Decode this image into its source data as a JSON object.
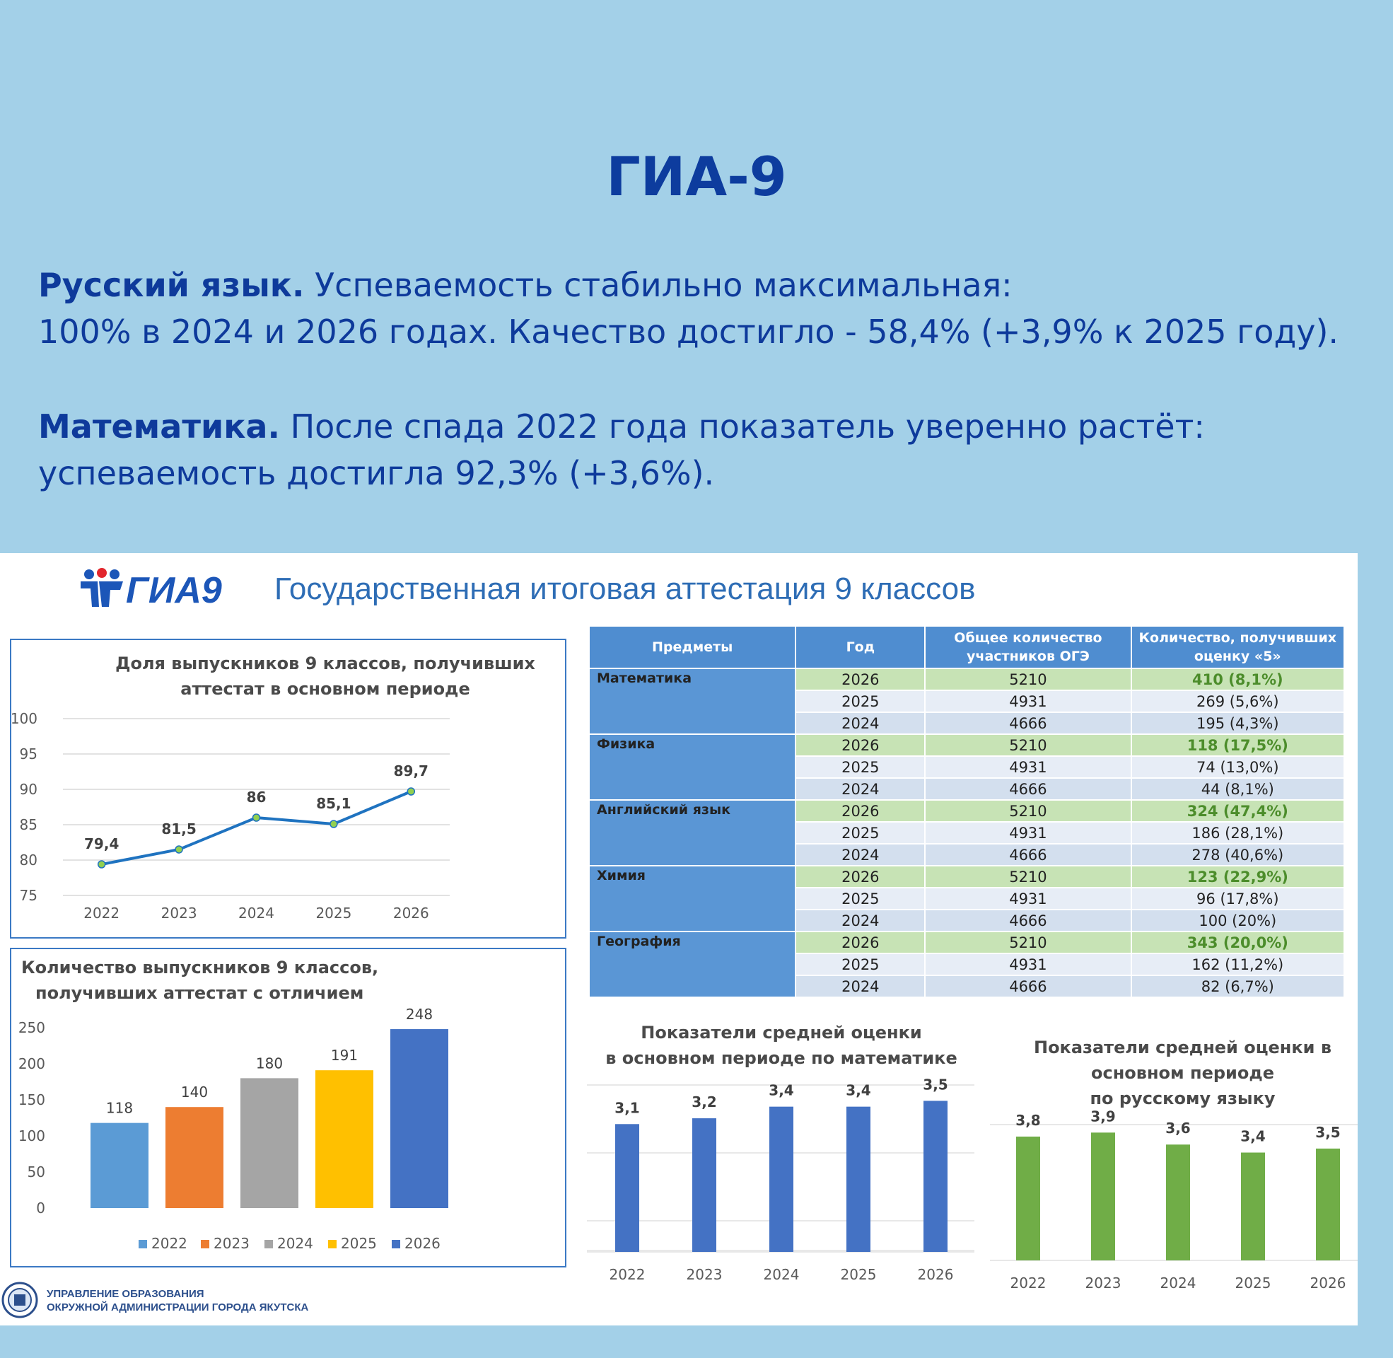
{
  "heading": "ГИА-9",
  "paragraphs": {
    "p1_bold": "Русский язык.",
    "p1_line1": " Успеваемость стабильно максимальная:",
    "p1_line2": "100% в 2024 и 2026 годах. Качество достигло - 58,4% (+3,9% к 2025 году).",
    "p2_bold": "Математика.",
    "p2_line1": " После спада 2022 года показатель уверенно растёт:",
    "p2_line2": "успеваемость достигла 92,3% (+3,6%)."
  },
  "slide": {
    "logo_text": "ГИА9",
    "title": "Государственная итоговая аттестация 9 классов",
    "footer_line1": "УПРАВЛЕНИЕ ОБРАЗОВАНИЯ",
    "footer_line2": "ОКРУЖНОЙ АДМИНИСТРАЦИИ ГОРОДА ЯКУТСКА"
  },
  "colors": {
    "background": "#a3d0e8",
    "heading": "#0d3c9e",
    "line": "#1f73c0",
    "bars_math": "#4472c4",
    "bars_russian": "#70ad47",
    "highlight_row": "#c7e3b5"
  },
  "table": {
    "headers": [
      "Предметы",
      "Год",
      "Общее количество участников ОГЭ",
      "Количество, получивших оценку «5»"
    ],
    "subjects": [
      {
        "name": "Математика",
        "rows": [
          [
            "2026",
            "5210",
            "410 (8,1%)"
          ],
          [
            "2025",
            "4931",
            "269 (5,6%)"
          ],
          [
            "2024",
            "4666",
            "195 (4,3%)"
          ]
        ]
      },
      {
        "name": "Физика",
        "rows": [
          [
            "2026",
            "5210",
            "118 (17,5%)"
          ],
          [
            "2025",
            "4931",
            "74 (13,0%)"
          ],
          [
            "2024",
            "4666",
            "44 (8,1%)"
          ]
        ]
      },
      {
        "name": "Английский язык",
        "rows": [
          [
            "2026",
            "5210",
            "324 (47,4%)"
          ],
          [
            "2025",
            "4931",
            "186 (28,1%)"
          ],
          [
            "2024",
            "4666",
            "278 (40,6%)"
          ]
        ]
      },
      {
        "name": "Химия",
        "rows": [
          [
            "2026",
            "5210",
            "123 (22,9%)"
          ],
          [
            "2025",
            "4931",
            "96 (17,8%)"
          ],
          [
            "2024",
            "4666",
            "100 (20%)"
          ]
        ]
      },
      {
        "name": "География",
        "rows": [
          [
            "2026",
            "5210",
            "343 (20,0%)"
          ],
          [
            "2025",
            "4931",
            "162 (11,2%)"
          ],
          [
            "2024",
            "4666",
            "82 (6,7%)"
          ]
        ]
      }
    ]
  },
  "chart_data": [
    {
      "type": "line",
      "title": "Доля выпускников 9 классов, получивших аттестат в основном периоде",
      "title_lines": [
        "Доля выпускников 9 классов, получивших",
        "аттестат в основном периоде"
      ],
      "x": [
        "2022",
        "2023",
        "2024",
        "2025",
        "2026"
      ],
      "values": [
        79.4,
        81.5,
        86,
        85.1,
        89.7
      ],
      "labels": [
        "79,4",
        "81,5",
        "86",
        "85,1",
        "89,7"
      ],
      "yticks": [
        75,
        80,
        85,
        90,
        95,
        100
      ],
      "ylim": [
        75,
        100
      ],
      "grid": true
    },
    {
      "type": "bar",
      "title": "Количество выпускников 9 классов, получивших аттестат с отличием",
      "title_lines": [
        "Количество выпускников 9 классов,",
        "получивших аттестат с отличием"
      ],
      "categories": [
        "2022",
        "2023",
        "2024",
        "2025",
        "2026"
      ],
      "values": [
        118,
        140,
        180,
        191,
        248
      ],
      "bar_colors": [
        "#5b9bd5",
        "#ed7d31",
        "#a5a5a5",
        "#ffc000",
        "#4472c4"
      ],
      "yticks": [
        0,
        50,
        100,
        150,
        200,
        250
      ],
      "ylim": [
        0,
        250
      ],
      "legend": "bottom"
    },
    {
      "type": "bar",
      "title": "Показатели средней оценки в основном периоде по математике",
      "title_lines": [
        "Показатели средней оценки",
        "в основном периоде по математике"
      ],
      "categories": [
        "2022",
        "2023",
        "2024",
        "2025",
        "2026"
      ],
      "values": [
        3.1,
        3.2,
        3.4,
        3.4,
        3.5
      ],
      "labels": [
        "3,1",
        "3,2",
        "3,4",
        "3,4",
        "3,5"
      ],
      "grid": true
    },
    {
      "type": "bar",
      "title": "Показатели средней оценки в основном периоде по русскому языку",
      "title_lines": [
        "Показатели средней оценки в",
        "основном периоде",
        "по русскому языку"
      ],
      "categories": [
        "2022",
        "2023",
        "2024",
        "2025",
        "2026"
      ],
      "values": [
        3.8,
        3.9,
        3.6,
        3.4,
        3.5
      ],
      "labels": [
        "3,8",
        "3,9",
        "3,6",
        "3,4",
        "3,5"
      ],
      "grid": true
    }
  ]
}
